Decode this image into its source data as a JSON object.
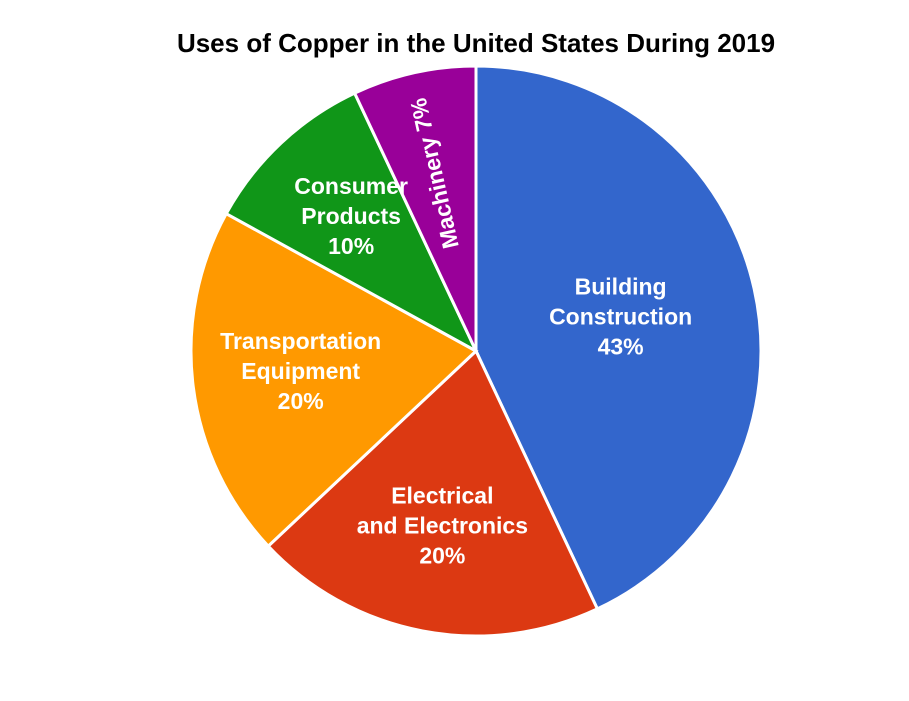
{
  "chart_data": {
    "type": "pie",
    "title": "Uses of Copper in the United States During 2019",
    "slices": [
      {
        "lines": [
          "Building",
          "Construction",
          "43%"
        ],
        "value": 43,
        "color": "#3366cc"
      },
      {
        "lines": [
          "Electrical",
          "and Electronics",
          "20%"
        ],
        "value": 20,
        "color": "#dc3912"
      },
      {
        "lines": [
          "Transportation",
          "Equipment",
          "20%"
        ],
        "value": 20,
        "color": "#ff9900"
      },
      {
        "lines": [
          "Consumer",
          "Products",
          "10%"
        ],
        "value": 10,
        "color": "#109618"
      },
      {
        "lines": [
          "Machinery 7%"
        ],
        "value": 7,
        "color": "#990099",
        "label_orientation": "rotated"
      }
    ]
  }
}
